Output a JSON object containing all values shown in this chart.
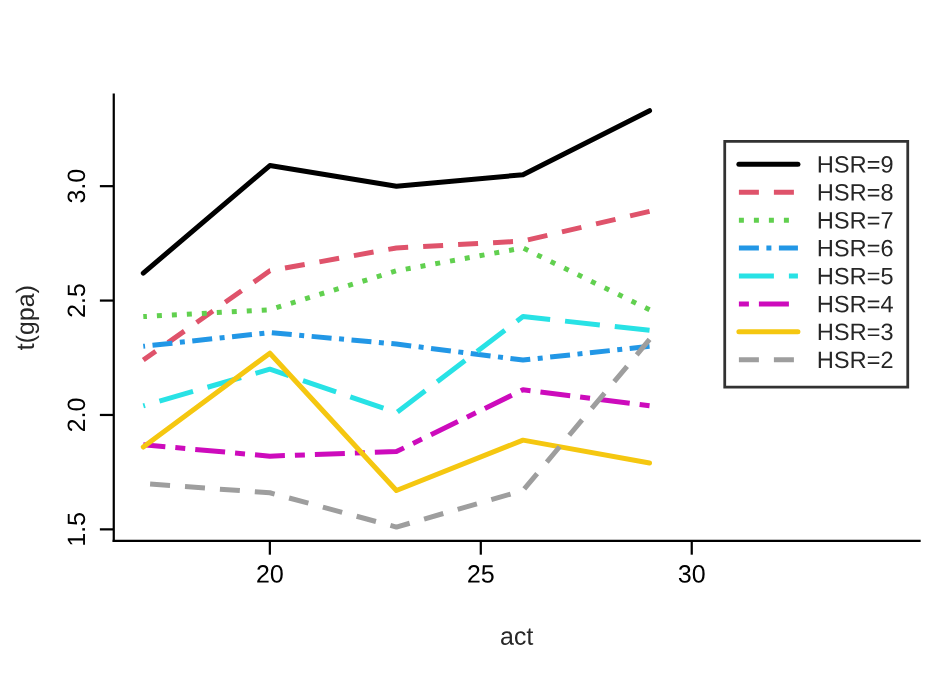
{
  "chart_data": {
    "type": "line",
    "xlabel": "act",
    "ylabel": "t(gpa)",
    "x": [
      17,
      20,
      23,
      26,
      29
    ],
    "xlim": [
      16.3,
      35.4
    ],
    "xticks": [
      20,
      25,
      30
    ],
    "ylim": [
      1.45,
      3.4
    ],
    "yticks": [
      1.5,
      {
        "value": 2,
        "label": "2.0"
      },
      2.5,
      {
        "value": 3,
        "label": "3.0"
      }
    ],
    "grid": false,
    "legend": "right",
    "marker": "none",
    "series": [
      {
        "name": "HSR=9",
        "color": "#000000",
        "line_style": "solid",
        "values": [
          2.62,
          3.09,
          3.0,
          3.05,
          3.33
        ]
      },
      {
        "name": "HSR=8",
        "color": "#df536b",
        "line_style": "dashed",
        "values": [
          2.24,
          2.63,
          2.73,
          2.76,
          2.89
        ]
      },
      {
        "name": "HSR=7",
        "color": "#61d04f",
        "line_style": "dotted",
        "values": [
          2.43,
          2.46,
          2.63,
          2.73,
          2.46
        ]
      },
      {
        "name": "HSR=6",
        "color": "#2297e6",
        "line_style": "dashdot",
        "values": [
          2.3,
          2.36,
          2.31,
          2.24,
          2.3
        ]
      },
      {
        "name": "HSR=5",
        "color": "#28e2e5",
        "line_style": "longdash",
        "values": [
          2.04,
          2.2,
          2.01,
          2.43,
          2.37
        ]
      },
      {
        "name": "HSR=4",
        "color": "#cd0bbc",
        "line_style": "twodash",
        "values": [
          1.87,
          1.82,
          1.84,
          2.11,
          2.04
        ]
      },
      {
        "name": "HSR=3",
        "color": "#f5c710",
        "line_style": "solid",
        "values": [
          1.86,
          2.27,
          1.67,
          1.89,
          1.79
        ]
      },
      {
        "name": "HSR=2",
        "color": "#9e9e9e",
        "line_style": "dashed",
        "values": [
          1.7,
          1.66,
          1.51,
          1.67,
          2.33
        ]
      }
    ]
  }
}
